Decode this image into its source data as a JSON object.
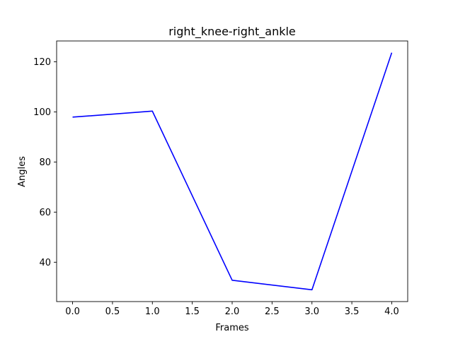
{
  "chart_data": {
    "type": "line",
    "title": "right_knee-right_ankle",
    "xlabel": "Frames",
    "ylabel": "Angles",
    "xlim": [
      -0.2,
      4.2
    ],
    "ylim": [
      24.3,
      128.3
    ],
    "xticks": [
      0.0,
      0.5,
      1.0,
      1.5,
      2.0,
      2.5,
      3.0,
      3.5,
      4.0
    ],
    "xtick_labels": [
      "0.0",
      "0.5",
      "1.0",
      "1.5",
      "2.0",
      "2.5",
      "3.0",
      "3.5",
      "4.0"
    ],
    "yticks": [
      40,
      60,
      80,
      100,
      120
    ],
    "ytick_labels": [
      "40",
      "60",
      "80",
      "100",
      "120"
    ],
    "grid": false,
    "series": [
      {
        "color": "#0000ff",
        "x": [
          0,
          1,
          2,
          3,
          4
        ],
        "values": [
          97.9,
          100.3,
          32.8,
          29.0,
          123.6
        ]
      }
    ]
  }
}
